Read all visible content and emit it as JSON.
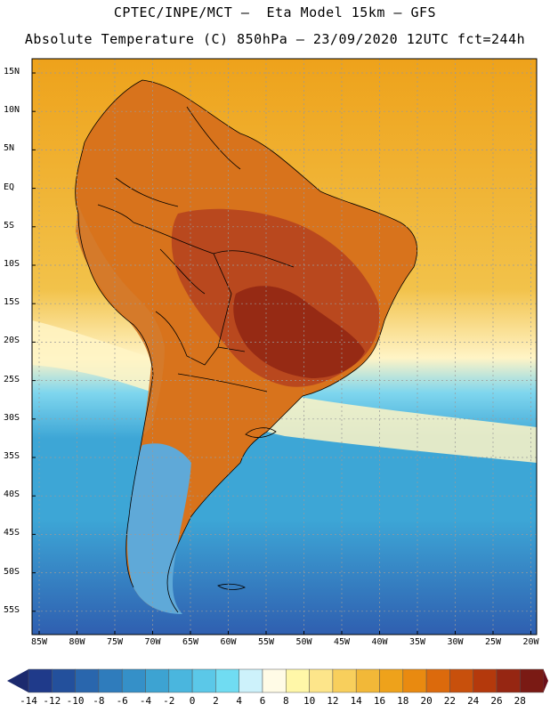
{
  "header": {
    "line1": "CPTEC/INPE/MCT –  Eta Model 15km – GFS",
    "line2": "Absolute Temperature (C) 850hPa – 23/09/2020 12UTC fct=244h"
  },
  "axes": {
    "latitudes": [
      "15N",
      "10N",
      "5N",
      "EQ",
      "5S",
      "10S",
      "15S",
      "20S",
      "25S",
      "30S",
      "35S",
      "40S",
      "45S",
      "50S",
      "55S"
    ],
    "longitudes": [
      "85W",
      "80W",
      "75W",
      "70W",
      "65W",
      "60W",
      "55W",
      "50W",
      "45W",
      "40W",
      "35W",
      "30W",
      "25W",
      "20W"
    ]
  },
  "colorbar": {
    "labels": [
      "-14",
      "-12",
      "-10",
      "-8",
      "-6",
      "-4",
      "-2",
      "0",
      "2",
      "4",
      "6",
      "8",
      "10",
      "12",
      "14",
      "16",
      "18",
      "20",
      "22",
      "24",
      "26",
      "28"
    ],
    "under_color": "#1c2a6e",
    "over_color": "#6b0f1a",
    "colors": [
      "#1f3a8a",
      "#23509c",
      "#2966ad",
      "#2f7cbc",
      "#3590c8",
      "#3da3d2",
      "#4ab6de",
      "#5bc8e8",
      "#70dcf2",
      "#cdf2fb",
      "#fffbe6",
      "#fff7a8",
      "#fde58a",
      "#f8cf5c",
      "#f2b838",
      "#eea21b",
      "#e98a10",
      "#dc6a0c",
      "#c8500c",
      "#b4390c",
      "#962612",
      "#7a1a14"
    ]
  },
  "map": {
    "ocean_colors": {
      "south_deep": "#2f5fb0",
      "south_mid": "#3da6d6",
      "south_light": "#7fd6ee",
      "front": "#fff4c6",
      "tropic": "#f2c24a",
      "warm": "#eea21b"
    },
    "land_colors": {
      "north": "#d8731c",
      "interior": "#b9481e",
      "hot": "#962a14",
      "andes": "#d57a2a",
      "patagonia": "#5fa9d8"
    }
  }
}
